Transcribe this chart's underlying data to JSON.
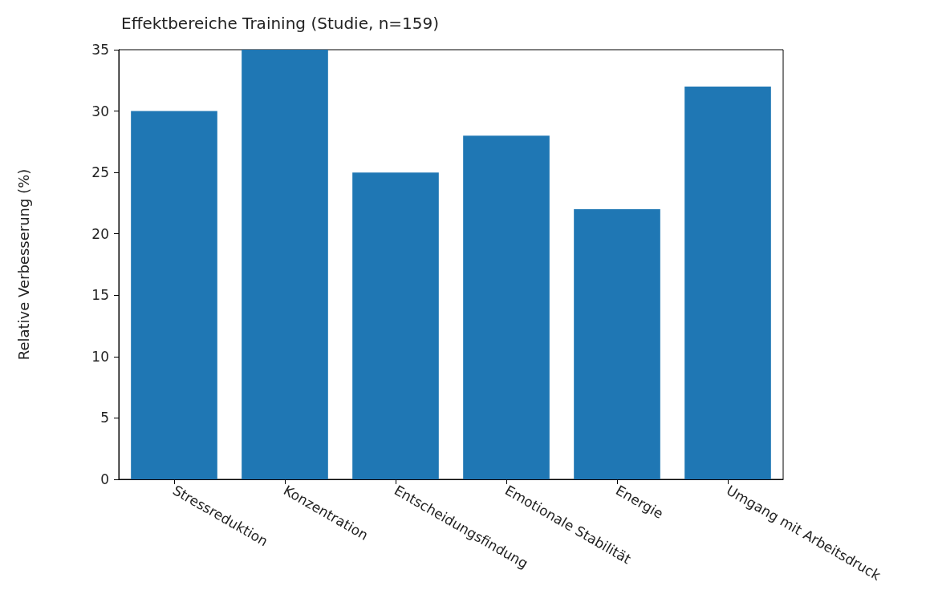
{
  "chart_data": {
    "type": "bar",
    "title": "Effektbereiche Training (Studie, n=159)",
    "ylabel": "Relative Verbesserung (%)",
    "categories": [
      "Stressreduktion",
      "Konzentration",
      "Entscheidungsfindung",
      "Emotionale Stabilität",
      "Energie",
      "Umgang mit Arbeitsdruck"
    ],
    "values": [
      30,
      35,
      25,
      28,
      22,
      32
    ],
    "color": "#1f77b4",
    "ylim": [
      0,
      35
    ],
    "yticks": [
      0,
      5,
      10,
      15,
      20,
      25,
      30,
      35
    ],
    "grid": false
  }
}
